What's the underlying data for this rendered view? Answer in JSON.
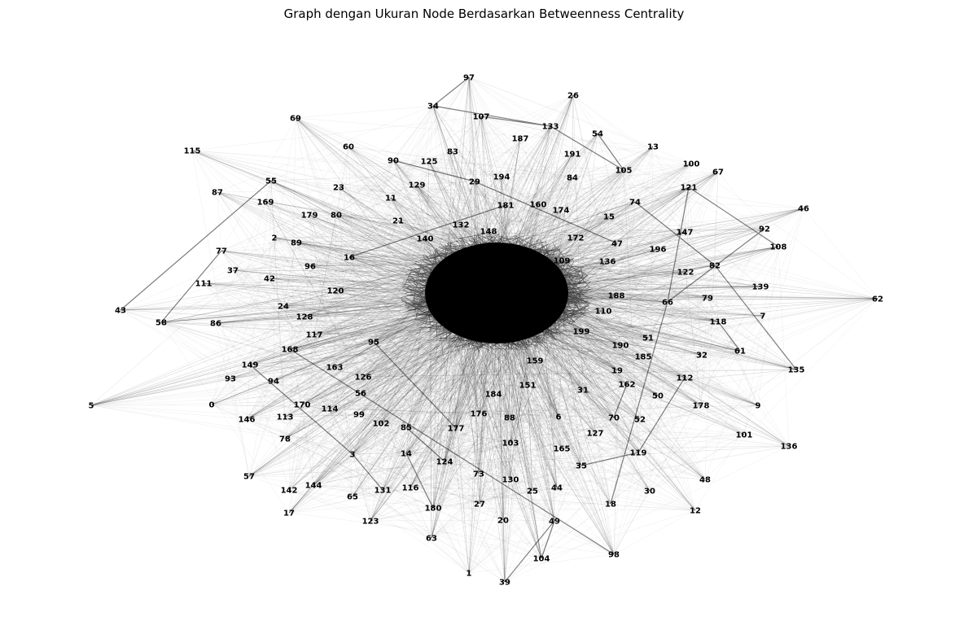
{
  "title": "Graph dengan Ukuran Node Berdasarkan Betweenness Centrality",
  "colors": {
    "edge": "#000000",
    "label": "#000000",
    "background": "#ffffff"
  },
  "nodes": [
    {
      "id": "97"
    },
    {
      "id": "26"
    },
    {
      "id": "34"
    },
    {
      "id": "107"
    },
    {
      "id": "133"
    },
    {
      "id": "54"
    },
    {
      "id": "69"
    },
    {
      "id": "187"
    },
    {
      "id": "13"
    },
    {
      "id": "191"
    },
    {
      "id": "115"
    },
    {
      "id": "60"
    },
    {
      "id": "83"
    },
    {
      "id": "90"
    },
    {
      "id": "125"
    },
    {
      "id": "100"
    },
    {
      "id": "105"
    },
    {
      "id": "67"
    },
    {
      "id": "55"
    },
    {
      "id": "194"
    },
    {
      "id": "84"
    },
    {
      "id": "87"
    },
    {
      "id": "23"
    },
    {
      "id": "129"
    },
    {
      "id": "29"
    },
    {
      "id": "121"
    },
    {
      "id": "11"
    },
    {
      "id": "181"
    },
    {
      "id": "160"
    },
    {
      "id": "74"
    },
    {
      "id": "46"
    },
    {
      "id": "169"
    },
    {
      "id": "179"
    },
    {
      "id": "80"
    },
    {
      "id": "21"
    },
    {
      "id": "174"
    },
    {
      "id": "15"
    },
    {
      "id": "132"
    },
    {
      "id": "92"
    },
    {
      "id": "147"
    },
    {
      "id": "148"
    },
    {
      "id": "2"
    },
    {
      "id": "89"
    },
    {
      "id": "140"
    },
    {
      "id": "47"
    },
    {
      "id": "108"
    },
    {
      "id": "196"
    },
    {
      "id": "77"
    },
    {
      "id": "16"
    },
    {
      "id": "96"
    },
    {
      "id": "37"
    },
    {
      "id": "136"
    },
    {
      "id": "82"
    },
    {
      "id": "122"
    },
    {
      "id": "42"
    },
    {
      "id": "111"
    },
    {
      "id": "120"
    },
    {
      "id": "139"
    },
    {
      "id": "62"
    },
    {
      "id": "79"
    },
    {
      "id": "188"
    },
    {
      "id": "24"
    },
    {
      "id": "66"
    },
    {
      "id": "43"
    },
    {
      "id": "128"
    },
    {
      "id": "58"
    },
    {
      "id": "86"
    },
    {
      "id": "110"
    },
    {
      "id": "7"
    },
    {
      "id": "118"
    },
    {
      "id": "117"
    },
    {
      "id": "51"
    },
    {
      "id": "190"
    },
    {
      "id": "168"
    },
    {
      "id": "61"
    },
    {
      "id": "32"
    },
    {
      "id": "95"
    },
    {
      "id": "199"
    },
    {
      "id": "185"
    },
    {
      "id": "149"
    },
    {
      "id": "163"
    },
    {
      "id": "19"
    },
    {
      "id": "135"
    },
    {
      "id": "93"
    },
    {
      "id": "126"
    },
    {
      "id": "94"
    },
    {
      "id": "151"
    },
    {
      "id": "31"
    },
    {
      "id": "162"
    },
    {
      "id": "112"
    },
    {
      "id": "56"
    },
    {
      "id": "184"
    },
    {
      "id": "5"
    },
    {
      "id": "0"
    },
    {
      "id": "170"
    },
    {
      "id": "50"
    },
    {
      "id": "178"
    },
    {
      "id": "9"
    },
    {
      "id": "114"
    },
    {
      "id": "146"
    },
    {
      "id": "113"
    },
    {
      "id": "99"
    },
    {
      "id": "102"
    },
    {
      "id": "85"
    },
    {
      "id": "176"
    },
    {
      "id": "88"
    },
    {
      "id": "6"
    },
    {
      "id": "70"
    },
    {
      "id": "177"
    },
    {
      "id": "52"
    },
    {
      "id": "101"
    },
    {
      "id": "127"
    },
    {
      "id": "78"
    },
    {
      "id": "103"
    },
    {
      "id": "136b",
      "label": "136"
    },
    {
      "id": "165"
    },
    {
      "id": "3"
    },
    {
      "id": "14"
    },
    {
      "id": "119"
    },
    {
      "id": "124"
    },
    {
      "id": "35"
    },
    {
      "id": "73"
    },
    {
      "id": "57"
    },
    {
      "id": "130"
    },
    {
      "id": "48"
    },
    {
      "id": "144"
    },
    {
      "id": "142"
    },
    {
      "id": "131"
    },
    {
      "id": "116"
    },
    {
      "id": "25"
    },
    {
      "id": "44"
    },
    {
      "id": "30"
    },
    {
      "id": "65"
    },
    {
      "id": "27"
    },
    {
      "id": "18"
    },
    {
      "id": "180"
    },
    {
      "id": "12"
    },
    {
      "id": "17"
    },
    {
      "id": "20"
    },
    {
      "id": "123"
    },
    {
      "id": "49"
    },
    {
      "id": "63"
    },
    {
      "id": "104"
    },
    {
      "id": "98"
    },
    {
      "id": "1"
    },
    {
      "id": "39"
    },
    {
      "id": "109"
    },
    {
      "id": "159"
    },
    {
      "id": "172"
    }
  ]
}
